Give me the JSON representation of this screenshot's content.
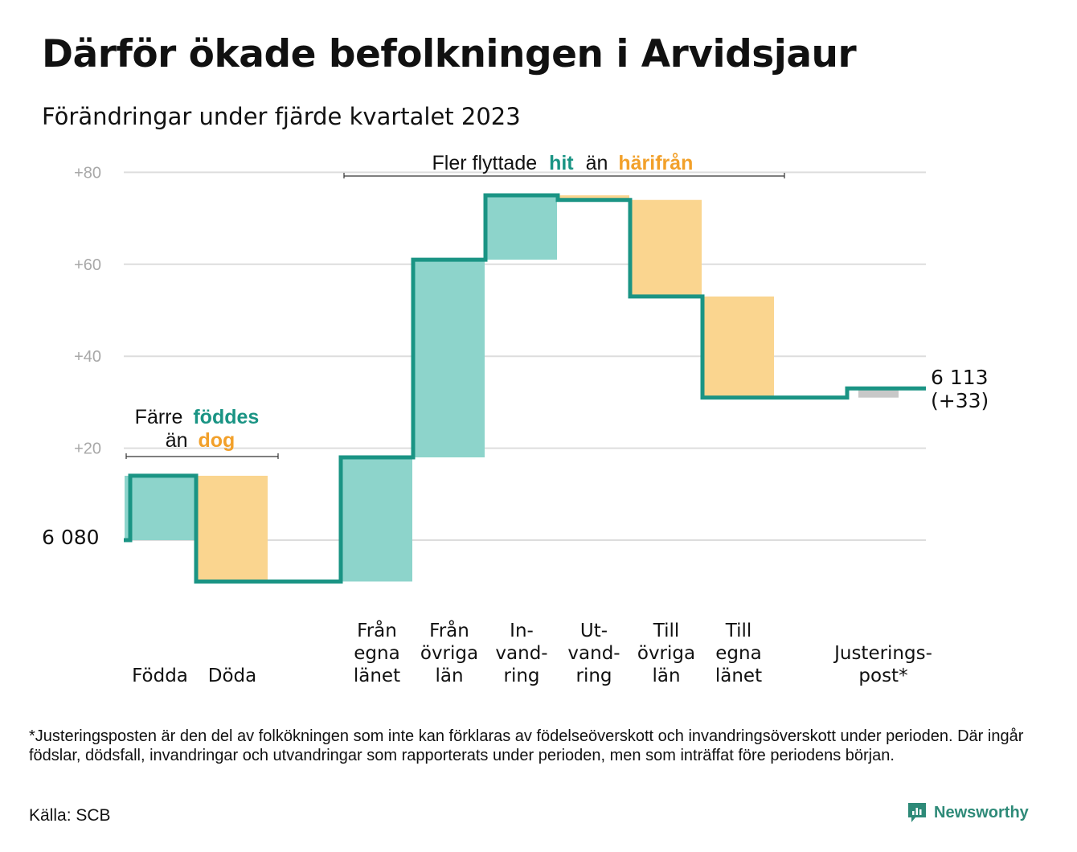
{
  "title": "Därför ökade befolkningen i Arvidsjaur",
  "subtitle": "Förändringar under fjärde kvartalet 2023",
  "footnote": "*Justeringsposten är den del av folkökningen som inte kan förklaras av födelseöverskott och invandringsöverskott under perioden. Där ingår födslar, dödsfall, invandringar och utvandringar som rapporterats under perioden, men som inträffat före periodens början.",
  "source": "Källa: SCB",
  "brand": "Newsworthy",
  "colors": {
    "increase": "#8dd4cb",
    "decrease": "#fad58f",
    "adjustment": "#c8c8c8",
    "line": "#1a9484",
    "highlight_in": "#1a9484",
    "highlight_out": "#f2a02a"
  },
  "annotations": {
    "births": {
      "line1_pre": "Färre",
      "line1_hl": "föddes",
      "line2_pre": "än",
      "line2_hl": "dog"
    },
    "migration": {
      "pre": "Fler flyttade",
      "hl_in": "hit",
      "mid": "än",
      "hl_out": "härifrån"
    }
  },
  "chart_data": {
    "type": "waterfall",
    "start": {
      "label": "6  080",
      "value": 0
    },
    "end": {
      "label_total": "6 113",
      "label_change": "(+33)",
      "value": 33
    },
    "yticks": [
      {
        "value": 80,
        "label": "+80"
      },
      {
        "value": 60,
        "label": "+60"
      },
      {
        "value": 40,
        "label": "+40"
      },
      {
        "value": 20,
        "label": "+20"
      }
    ],
    "ylim": [
      -9,
      82
    ],
    "steps": [
      {
        "label": [
          "Födda"
        ],
        "change": 14,
        "kind": "increase"
      },
      {
        "label": [
          "Döda"
        ],
        "change": -23,
        "kind": "decrease"
      },
      {
        "label": [],
        "change": 0,
        "kind": "gap"
      },
      {
        "label": [
          "Från",
          "egna",
          "länet"
        ],
        "change": 27,
        "kind": "increase"
      },
      {
        "label": [
          "Från",
          "övriga",
          "län"
        ],
        "change": 43,
        "kind": "increase"
      },
      {
        "label": [
          "In-",
          "vand-",
          "ring"
        ],
        "change": 14,
        "kind": "increase"
      },
      {
        "label": [
          "Ut-",
          "vand-",
          "ring"
        ],
        "change": -1,
        "kind": "decrease"
      },
      {
        "label": [
          "Till",
          "övriga",
          "län"
        ],
        "change": -21,
        "kind": "decrease"
      },
      {
        "label": [
          "Till",
          "egna",
          "länet"
        ],
        "change": -22,
        "kind": "decrease"
      },
      {
        "label": [],
        "change": 0,
        "kind": "gap"
      },
      {
        "label": [
          "Justerings-",
          "post*"
        ],
        "change": 2,
        "kind": "adjustment"
      }
    ]
  }
}
